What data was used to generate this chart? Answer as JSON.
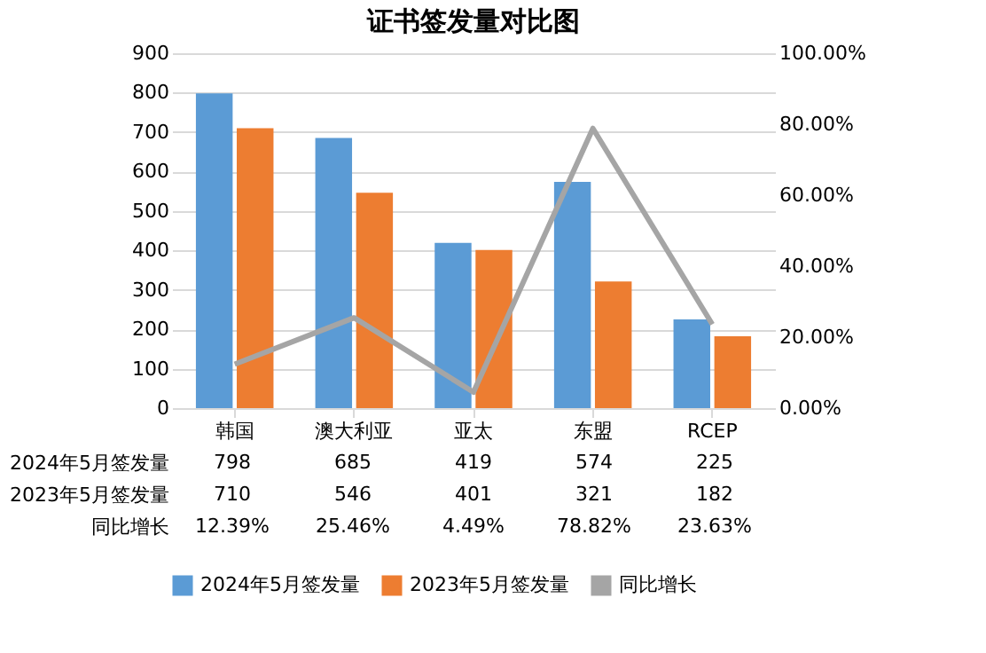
{
  "chart_data": {
    "type": "bar",
    "title": "证书签发量对比图",
    "categories": [
      "韩国",
      "澳大利亚",
      "亚太",
      "东盟",
      "RCEP"
    ],
    "series": [
      {
        "name": "2024年5月签发量",
        "color": "#5b9bd5",
        "values": [
          798,
          685,
          419,
          574,
          225
        ],
        "value_labels": [
          "798",
          "685",
          "419",
          "574",
          "225"
        ]
      },
      {
        "name": "2023年5月签发量",
        "color": "#ed7d31",
        "values": [
          710,
          546,
          401,
          321,
          182
        ],
        "value_labels": [
          "710",
          "546",
          "401",
          "321",
          "182"
        ]
      },
      {
        "name": "同比增长",
        "type": "line",
        "axis": "y2",
        "color": "#a5a5a5",
        "values": [
          12.39,
          25.46,
          4.49,
          78.82,
          23.63
        ],
        "value_labels": [
          "12.39%",
          "25.46%",
          "4.49%",
          "78.82%",
          "23.63%"
        ]
      }
    ],
    "ylim": [
      0,
      900
    ],
    "yticks": [
      0,
      100,
      200,
      300,
      400,
      500,
      600,
      700,
      800,
      900
    ],
    "y2lim": [
      0,
      100
    ],
    "y2ticks": [
      {
        "value": 0,
        "label": "0.00%"
      },
      {
        "value": 20,
        "label": "20.00%"
      },
      {
        "value": 40,
        "label": "40.00%"
      },
      {
        "value": 60,
        "label": "60.00%"
      },
      {
        "value": 80,
        "label": "80.00%"
      },
      {
        "value": 100,
        "label": "100.00%"
      }
    ],
    "grid": "y",
    "legend": "bottom"
  }
}
